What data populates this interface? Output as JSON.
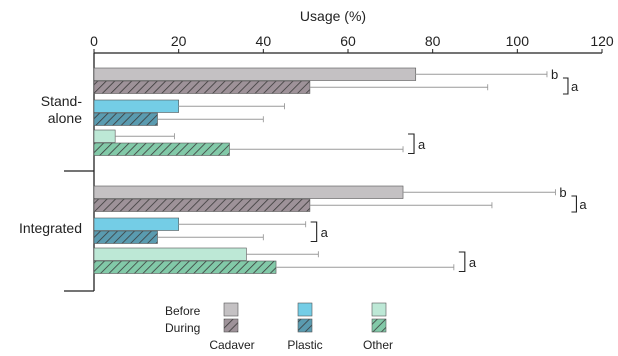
{
  "chart_data": {
    "type": "bar",
    "orientation": "horizontal",
    "xlabel": "Usage (%)",
    "xlim": [
      0,
      120
    ],
    "xticks": [
      0,
      20,
      40,
      60,
      80,
      100,
      120
    ],
    "x_axis_position": "top",
    "groups": [
      {
        "label": "Stand-\nalone",
        "categories": [
          {
            "name": "Cadaver",
            "before": 76,
            "before_err": 31,
            "during": 51,
            "during_err": 42,
            "significance": [
              {
                "text": "b",
                "applies_to": "before"
              },
              {
                "text": "a",
                "applies_to": "during"
              }
            ]
          },
          {
            "name": "Plastic",
            "before": 20,
            "before_err": 25,
            "during": 15,
            "during_err": 25,
            "significance": []
          },
          {
            "name": "Other",
            "before": 5,
            "before_err": 14,
            "during": 32,
            "during_err": 41,
            "significance": [
              {
                "text": "a",
                "applies_to": "bracket"
              }
            ]
          }
        ]
      },
      {
        "label": "Integrated",
        "categories": [
          {
            "name": "Cadaver",
            "before": 73,
            "before_err": 36,
            "during": 51,
            "during_err": 43,
            "significance": [
              {
                "text": "b",
                "applies_to": "before"
              },
              {
                "text": "a",
                "applies_to": "during"
              }
            ]
          },
          {
            "name": "Plastic",
            "before": 20,
            "before_err": 30,
            "during": 15,
            "during_err": 25,
            "significance": [
              {
                "text": "a",
                "applies_to": "bracket"
              }
            ]
          },
          {
            "name": "Other",
            "before": 36,
            "before_err": 17,
            "during": 43,
            "during_err": 42,
            "significance": [
              {
                "text": "a",
                "applies_to": "bracket"
              }
            ]
          }
        ]
      }
    ],
    "legend": {
      "position": "bottom",
      "rows": [
        "Before",
        "During"
      ],
      "categories": [
        "Cadaver",
        "Plastic",
        "Other"
      ]
    },
    "colors": {
      "Cadaver": "#c4c1c3",
      "Cadaver_during": "#9e9299",
      "Plastic": "#74cde6",
      "Plastic_during": "#5a9bb0",
      "Other": "#bde8d6",
      "Other_during": "#82c9a8",
      "hatch": "#3a3a3a",
      "bar_edge": "#555555",
      "error_bar": "#9a9a9a",
      "axis": "#222222"
    },
    "hatch_during": true
  }
}
